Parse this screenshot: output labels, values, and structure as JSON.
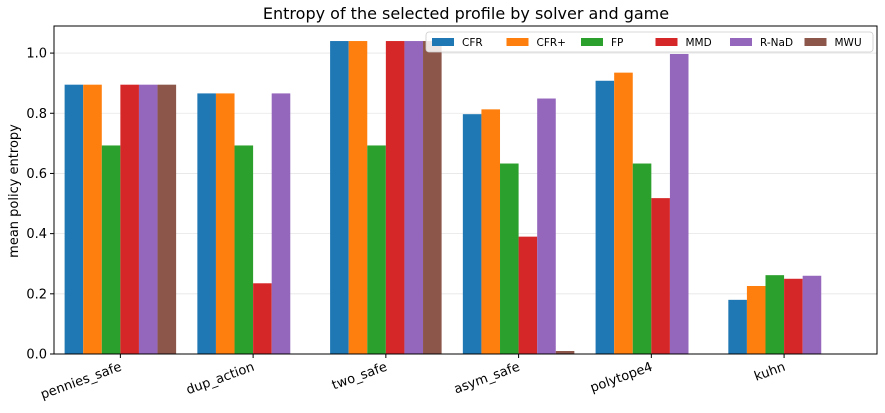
{
  "chart_data": {
    "type": "bar",
    "title": "Entropy of the selected profile by solver and game",
    "xlabel": "",
    "ylabel": "mean policy entropy",
    "ylim": [
      0,
      1.09
    ],
    "yticks": [
      "0.0",
      "0.2",
      "0.4",
      "0.6",
      "0.8",
      "1.0"
    ],
    "ytick_values": [
      0,
      0.2,
      0.4,
      0.6,
      0.8,
      1.0
    ],
    "grid": true,
    "legend_position": "top-right",
    "categories": [
      "pennies_safe",
      "dup_action",
      "two_safe",
      "asym_safe",
      "polytope4",
      "kuhn"
    ],
    "series": [
      {
        "name": "CFR",
        "color": "#1f77b4",
        "values": [
          0.895,
          0.866,
          1.04,
          0.797,
          0.908,
          0.18
        ]
      },
      {
        "name": "CFR+",
        "color": "#ff7f0e",
        "values": [
          0.895,
          0.866,
          1.04,
          0.813,
          0.935,
          0.226
        ]
      },
      {
        "name": "FP",
        "color": "#2ca02c",
        "values": [
          0.693,
          0.693,
          0.693,
          0.633,
          0.633,
          0.262
        ]
      },
      {
        "name": "MMD",
        "color": "#d62728",
        "values": [
          0.895,
          0.235,
          1.04,
          0.39,
          0.518,
          0.25
        ]
      },
      {
        "name": "R-NaD",
        "color": "#9467bd",
        "values": [
          0.895,
          0.866,
          1.04,
          0.849,
          0.997,
          0.26
        ]
      },
      {
        "name": "MWU",
        "color": "#8c564b",
        "values": [
          0.895,
          null,
          1.04,
          0.01,
          null,
          null
        ]
      }
    ]
  }
}
